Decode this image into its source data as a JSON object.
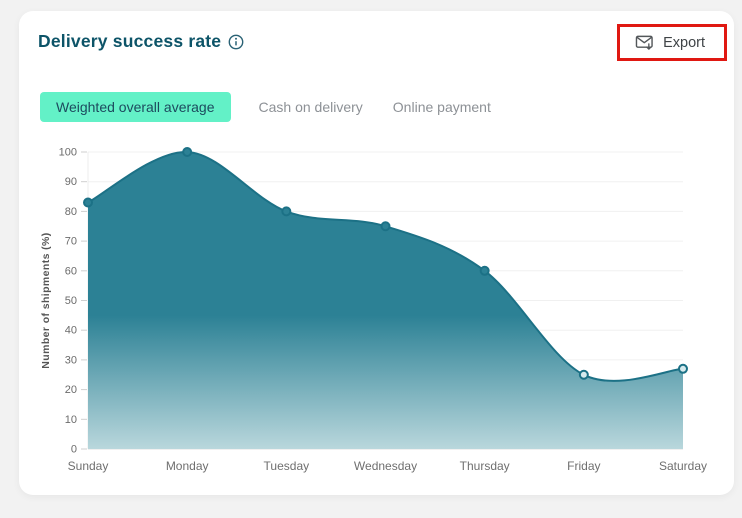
{
  "header": {
    "title": "Delivery success rate",
    "export_label": "Export"
  },
  "tabs": [
    {
      "label": "Weighted overall average",
      "active": true
    },
    {
      "label": "Cash on delivery",
      "active": false
    },
    {
      "label": "Online payment",
      "active": false
    }
  ],
  "colors": {
    "title_text": "#0d5468",
    "active_tab_bg": "#63f1c7",
    "active_tab_text": "#1d4a5e",
    "inactive_tab_text": "#8d9196",
    "highlight_box": "#e01812",
    "line": "#1c7186",
    "fill_top": "#2c8195",
    "fill_bottom": "#b9d7dc",
    "marker_low_fill": "#d6eaed",
    "grid": "#f0f0f0",
    "axis_text": "#6b6b6b"
  },
  "chart_data": {
    "type": "area",
    "categories": [
      "Sunday",
      "Monday",
      "Tuesday",
      "Wednesday",
      "Thursday",
      "Friday",
      "Saturday"
    ],
    "values": [
      83,
      100,
      80,
      75,
      60,
      25,
      27
    ],
    "title": "",
    "xlabel": "",
    "ylabel": "Number of shipments (%)",
    "ylim": [
      0,
      100
    ],
    "ytick_step": 10,
    "grid": true,
    "legend": false
  }
}
